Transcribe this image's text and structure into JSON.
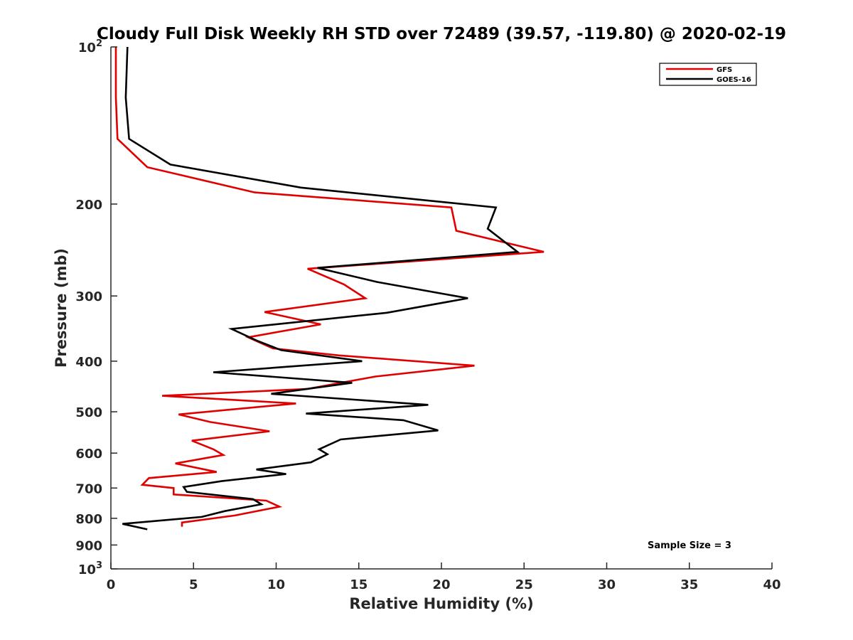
{
  "chart_data": {
    "type": "line",
    "title": "Cloudy Full Disk Weekly RH STD over 72489 (39.57, -119.80) @ 2020-02-19",
    "xlabel": "Relative Humidity (%)",
    "ylabel": "Pressure (mb)",
    "xlim": [
      0,
      40
    ],
    "ylim": [
      100,
      1000
    ],
    "y_scale": "log",
    "y_reversed": true,
    "x_ticks": [
      "0",
      "5",
      "10",
      "15",
      "20",
      "25",
      "30",
      "35",
      "40"
    ],
    "y_ticks": [
      {
        "value": 100,
        "base": "10",
        "exp": "2"
      },
      {
        "value": 200,
        "label": "200"
      },
      {
        "value": 300,
        "label": "300"
      },
      {
        "value": 400,
        "label": "400"
      },
      {
        "value": 500,
        "label": "500"
      },
      {
        "value": 600,
        "label": "600"
      },
      {
        "value": 700,
        "label": "700"
      },
      {
        "value": 800,
        "label": "800"
      },
      {
        "value": 900,
        "label": "900"
      },
      {
        "value": 1000,
        "base": "10",
        "exp": "3"
      }
    ],
    "grid": false,
    "legend_position": "top-right",
    "annotation": "Sample Size = 3",
    "series": [
      {
        "name": "GFS",
        "color": "#e00000",
        "points": [
          [
            0.3,
            100
          ],
          [
            0.3,
            125
          ],
          [
            0.4,
            150
          ],
          [
            2.2,
            170
          ],
          [
            8.7,
            190
          ],
          [
            20.6,
            203
          ],
          [
            20.9,
            225
          ],
          [
            26.2,
            247
          ],
          [
            11.9,
            266
          ],
          [
            14.1,
            285
          ],
          [
            15.4,
            303
          ],
          [
            9.3,
            322
          ],
          [
            12.7,
            340
          ],
          [
            8.3,
            360
          ],
          [
            9.8,
            378
          ],
          [
            13.8,
            390
          ],
          [
            22.0,
            408
          ],
          [
            16.0,
            428
          ],
          [
            11.9,
            452
          ],
          [
            3.1,
            466
          ],
          [
            11.2,
            482
          ],
          [
            4.1,
            506
          ],
          [
            6.0,
            523
          ],
          [
            9.6,
            545
          ],
          [
            4.9,
            568
          ],
          [
            6.2,
            590
          ],
          [
            6.8,
            605
          ],
          [
            3.9,
            628
          ],
          [
            6.4,
            652
          ],
          [
            2.3,
            670
          ],
          [
            1.9,
            690
          ],
          [
            3.8,
            700
          ],
          [
            3.8,
            720
          ],
          [
            9.4,
            740
          ],
          [
            10.2,
            760
          ],
          [
            7.5,
            790
          ],
          [
            4.3,
            815
          ],
          [
            4.3,
            830
          ]
        ]
      },
      {
        "name": "GOES-16",
        "color": "#000000",
        "points": [
          [
            1.0,
            100
          ],
          [
            0.9,
            125
          ],
          [
            1.1,
            150
          ],
          [
            3.6,
            168
          ],
          [
            11.5,
            186
          ],
          [
            23.3,
            203
          ],
          [
            22.8,
            223
          ],
          [
            24.6,
            247
          ],
          [
            12.5,
            265
          ],
          [
            16.1,
            282
          ],
          [
            21.6,
            303
          ],
          [
            16.7,
            323
          ],
          [
            7.3,
            347
          ],
          [
            8.8,
            365
          ],
          [
            10.3,
            381
          ],
          [
            15.2,
            400
          ],
          [
            6.2,
            420
          ],
          [
            14.6,
            440
          ],
          [
            9.7,
            462
          ],
          [
            19.2,
            485
          ],
          [
            11.8,
            504
          ],
          [
            17.7,
            519
          ],
          [
            19.8,
            543
          ],
          [
            13.9,
            565
          ],
          [
            12.6,
            590
          ],
          [
            13.1,
            603
          ],
          [
            12.1,
            625
          ],
          [
            8.8,
            645
          ],
          [
            10.6,
            658
          ],
          [
            6.7,
            679
          ],
          [
            4.4,
            697
          ],
          [
            4.6,
            712
          ],
          [
            8.6,
            735
          ],
          [
            9.1,
            752
          ],
          [
            6.9,
            775
          ],
          [
            5.5,
            795
          ],
          [
            0.7,
            820
          ],
          [
            2.2,
            840
          ]
        ]
      }
    ]
  }
}
